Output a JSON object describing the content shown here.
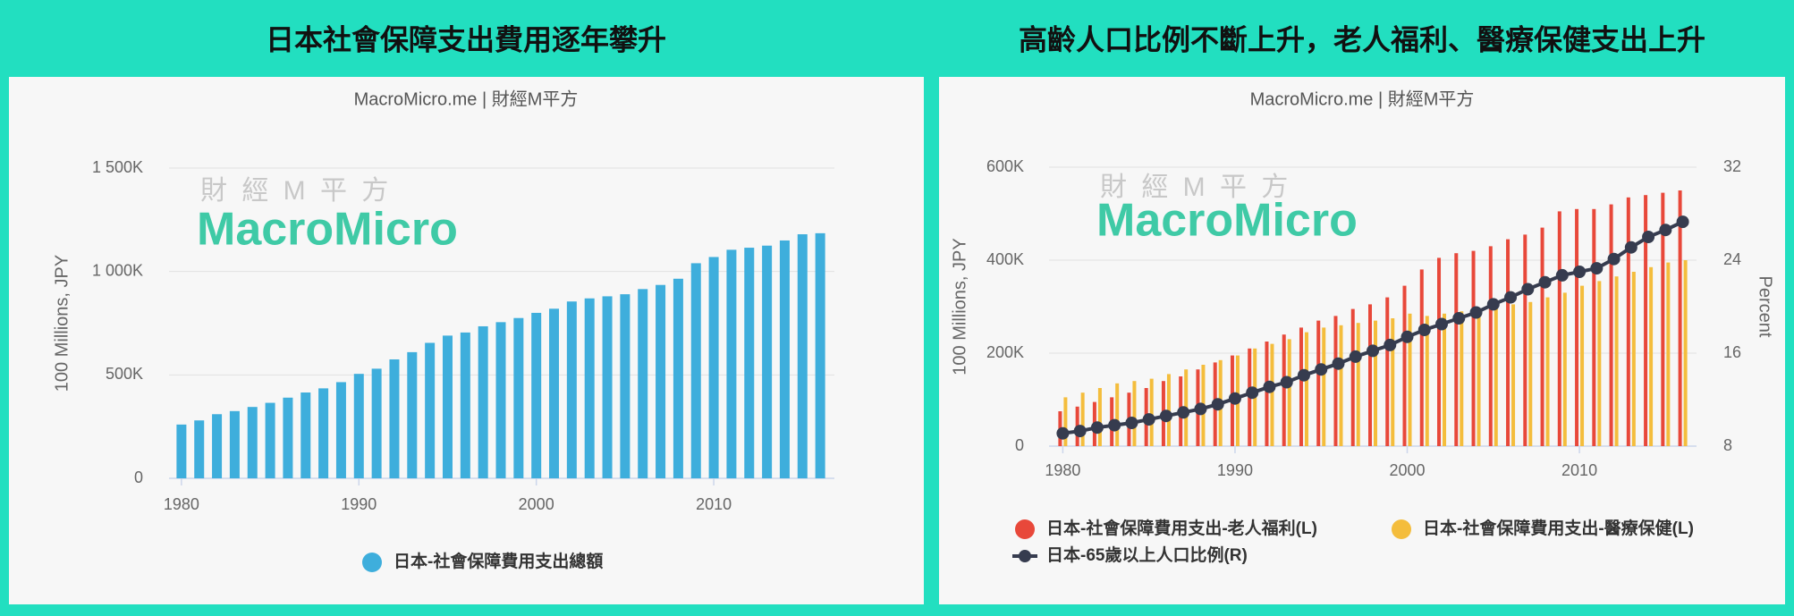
{
  "chart_data": [
    {
      "type": "bar",
      "title": "日本社會保障支出費用逐年攀升",
      "subtitle": "MacroMicro.me | 財經M平方",
      "watermark": {
        "top": "財 經 M 平 方",
        "main": "MacroMicro"
      },
      "ylabel": "100 Millions, JPY",
      "x": [
        1980,
        1981,
        1982,
        1983,
        1984,
        1985,
        1986,
        1987,
        1988,
        1989,
        1990,
        1991,
        1992,
        1993,
        1994,
        1995,
        1996,
        1997,
        1998,
        1999,
        2000,
        2001,
        2002,
        2003,
        2004,
        2005,
        2006,
        2007,
        2008,
        2009,
        2010,
        2011,
        2012,
        2013,
        2014,
        2015,
        2016
      ],
      "xlim": [
        1979.3,
        2016.8
      ],
      "xticks": [
        1980,
        1990,
        2000,
        2010
      ],
      "ylim": [
        0,
        1500000
      ],
      "yticks": [
        0,
        {
          "value": 500000,
          "label": "500K"
        },
        {
          "value": 1000000,
          "label": "1 000K"
        },
        {
          "value": 1500000,
          "label": "1 500K"
        }
      ],
      "grid": true,
      "series": [
        {
          "name": "日本-社會保障費用支出總額",
          "color": "#3eaedc",
          "values": [
            260000,
            280000,
            310000,
            325000,
            345000,
            365000,
            390000,
            415000,
            435000,
            465000,
            505000,
            530000,
            575000,
            610000,
            655000,
            690000,
            705000,
            735000,
            755000,
            775000,
            800000,
            820000,
            855000,
            870000,
            880000,
            890000,
            915000,
            935000,
            965000,
            1040000,
            1070000,
            1105000,
            1115000,
            1125000,
            1150000,
            1180000,
            1185000
          ]
        }
      ]
    },
    {
      "type": "bar",
      "title": "高齡人口比例不斷上升，老人福利、醫療保健支出上升",
      "subtitle": "MacroMicro.me | 財經M平方",
      "watermark": {
        "top": "財 經 M 平 方",
        "main": "MacroMicro"
      },
      "ylabel": "100 Millions, JPY",
      "y2label": "Percent",
      "x": [
        1980,
        1981,
        1982,
        1983,
        1984,
        1985,
        1986,
        1987,
        1988,
        1989,
        1990,
        1991,
        1992,
        1993,
        1994,
        1995,
        1996,
        1997,
        1998,
        1999,
        2000,
        2001,
        2002,
        2003,
        2004,
        2005,
        2006,
        2007,
        2008,
        2009,
        2010,
        2011,
        2012,
        2013,
        2014,
        2015,
        2016
      ],
      "xlim": [
        1979.2,
        2016.8
      ],
      "xticks": [
        1980,
        1990,
        2000,
        2010
      ],
      "ylim": [
        0,
        600000
      ],
      "yticks": [
        0,
        {
          "value": 200000,
          "label": "200K"
        },
        {
          "value": 400000,
          "label": "400K"
        },
        {
          "value": 600000,
          "label": "600K"
        }
      ],
      "y2lim": [
        8,
        32
      ],
      "y2ticks": [
        8,
        16,
        24,
        32
      ],
      "grid": true,
      "series": [
        {
          "name": "日本-社會保障費用支出-老人福利(L)",
          "color": "#e8483a",
          "values": [
            75000,
            85000,
            95000,
            105000,
            115000,
            125000,
            140000,
            150000,
            165000,
            180000,
            195000,
            210000,
            225000,
            240000,
            255000,
            270000,
            280000,
            295000,
            305000,
            320000,
            345000,
            380000,
            405000,
            415000,
            420000,
            430000,
            445000,
            455000,
            470000,
            505000,
            510000,
            510000,
            520000,
            535000,
            540000,
            545000,
            550000
          ]
        },
        {
          "name": "日本-社會保障費用支出-醫療保健(L)",
          "color": "#f4bd3c",
          "values": [
            105000,
            115000,
            125000,
            135000,
            140000,
            145000,
            155000,
            165000,
            175000,
            185000,
            195000,
            210000,
            220000,
            230000,
            245000,
            255000,
            260000,
            265000,
            270000,
            275000,
            285000,
            280000,
            285000,
            290000,
            295000,
            300000,
            305000,
            310000,
            320000,
            330000,
            345000,
            355000,
            365000,
            375000,
            385000,
            395000,
            400000
          ]
        },
        {
          "name": "日本-65歲以上人口比例(R)",
          "color": "#363c4f",
          "type": "line",
          "axis": "y2",
          "values": [
            9.1,
            9.3,
            9.6,
            9.8,
            10.0,
            10.3,
            10.6,
            10.9,
            11.2,
            11.6,
            12.1,
            12.6,
            13.1,
            13.5,
            14.1,
            14.6,
            15.1,
            15.7,
            16.2,
            16.7,
            17.4,
            18.0,
            18.5,
            19.0,
            19.5,
            20.2,
            20.8,
            21.5,
            22.1,
            22.7,
            23.0,
            23.3,
            24.1,
            25.1,
            26.0,
            26.6,
            27.3
          ]
        }
      ]
    }
  ]
}
